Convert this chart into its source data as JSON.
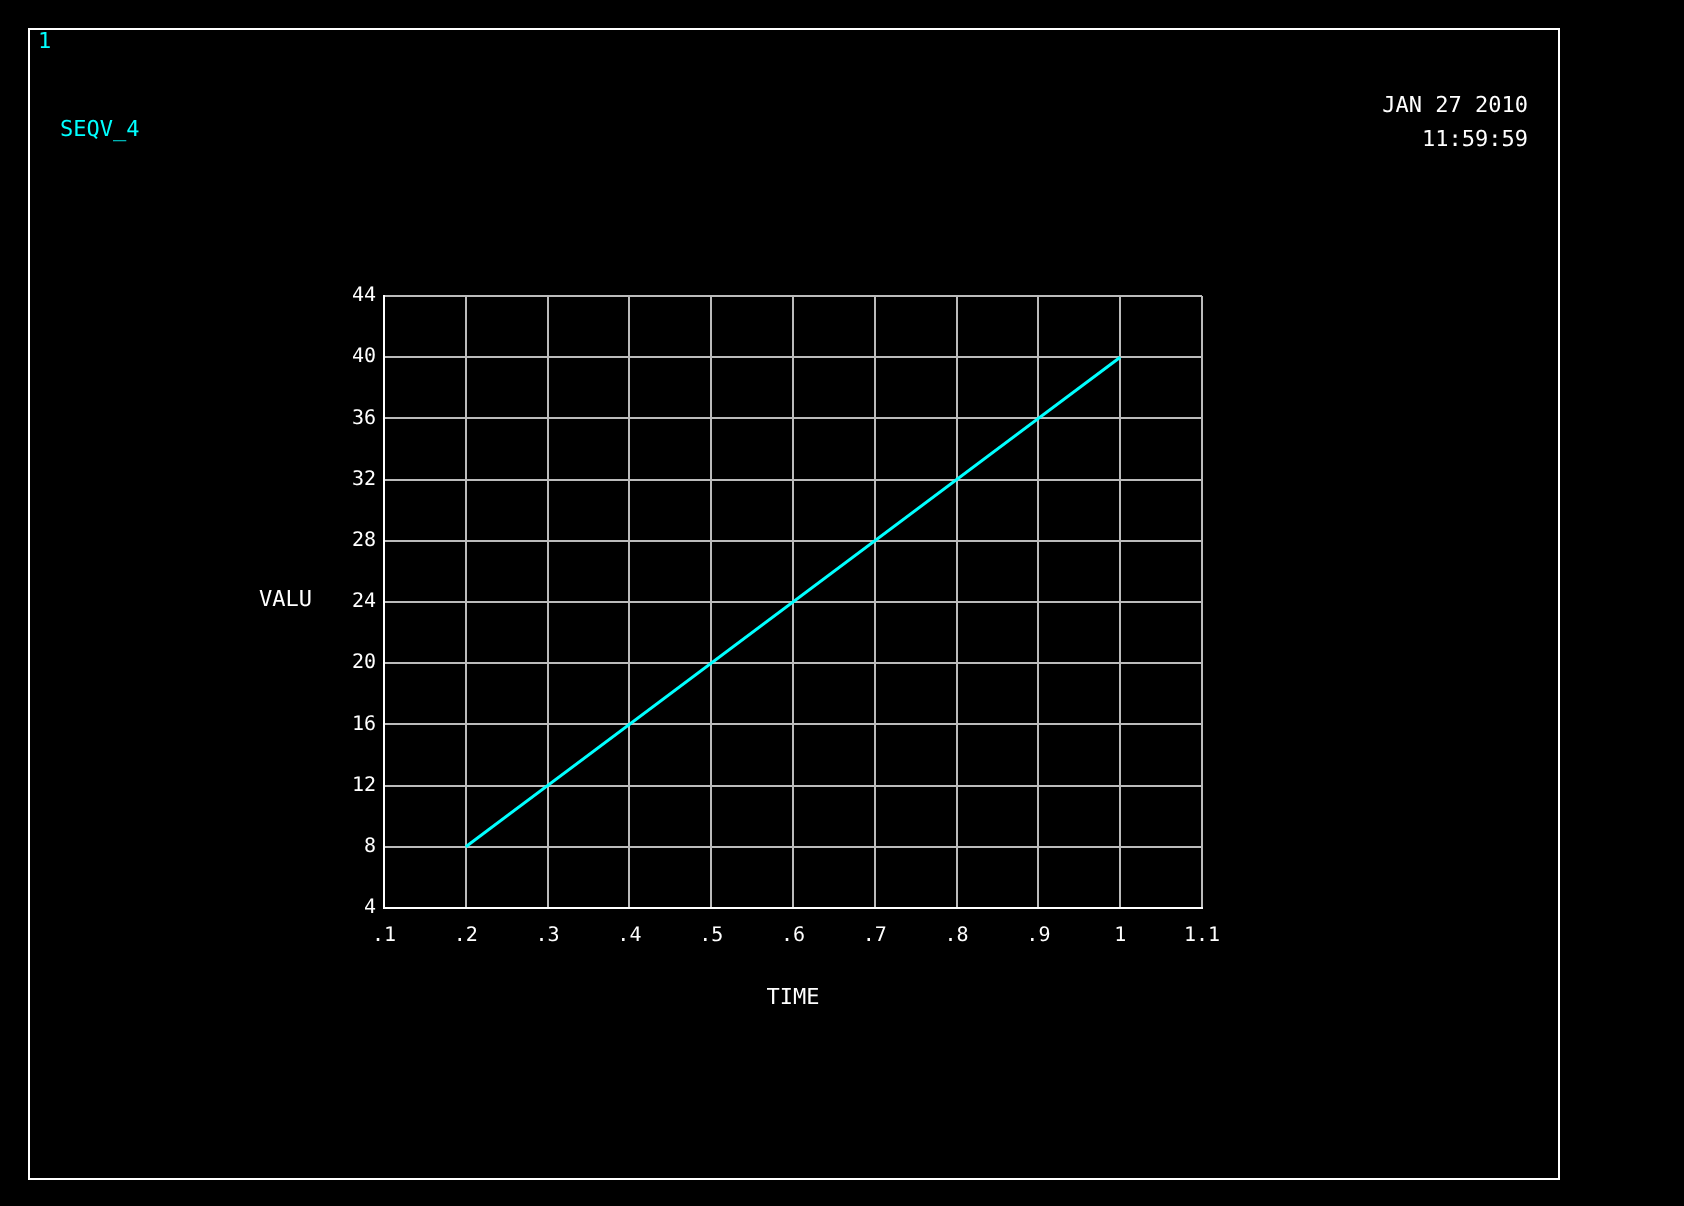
{
  "chart_data": {
    "type": "line",
    "xlabel": "TIME",
    "ylabel": "VALU",
    "series": [
      {
        "name": "SEQV_4",
        "color": "#00ffff",
        "x": [
          0.2,
          1
        ],
        "values": [
          8,
          40
        ]
      }
    ],
    "xlim": [
      0.1,
      1.1
    ],
    "xticks": [
      {
        "value": 0.1,
        "label": ".1"
      },
      {
        "value": 0.2,
        "label": ".2"
      },
      {
        "value": 0.3,
        "label": ".3"
      },
      {
        "value": 0.4,
        "label": ".4"
      },
      {
        "value": 0.5,
        "label": ".5"
      },
      {
        "value": 0.6,
        "label": ".6"
      },
      {
        "value": 0.7,
        "label": ".7"
      },
      {
        "value": 0.8,
        "label": ".8"
      },
      {
        "value": 0.9,
        "label": ".9"
      },
      1,
      1.1
    ],
    "ylim": [
      4,
      44
    ],
    "yticks": [
      4,
      8,
      12,
      16,
      20,
      24,
      28,
      32,
      36,
      40,
      44
    ],
    "grid": true,
    "legend": "top left",
    "marker": "none",
    "line_style": "solid",
    "annotations": [
      "1",
      "JAN 27 2010",
      "11:59:59"
    ]
  }
}
